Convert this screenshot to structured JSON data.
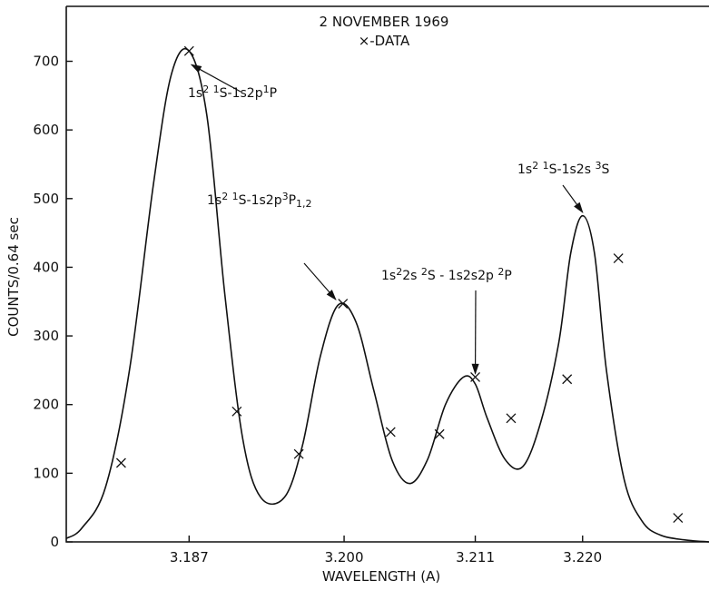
{
  "chart_data": {
    "type": "line",
    "title": "2 NOVEMBER 1969",
    "subtitle": "×-DATA",
    "xlabel": "WAVELENGTH (A)",
    "ylabel": "COUNTS/0.64 sec",
    "xlim": [
      3.1767,
      3.2306
    ],
    "ylim": [
      0,
      780
    ],
    "x_ticks": [
      {
        "value": 3.187,
        "label": "3.187"
      },
      {
        "value": 3.2,
        "label": "3.200"
      },
      {
        "value": 3.211,
        "label": "3.211"
      },
      {
        "value": 3.22,
        "label": "3.220"
      }
    ],
    "y_ticks": [
      0,
      100,
      200,
      300,
      400,
      500,
      600,
      700
    ],
    "fit_curve": {
      "x": [
        3.1767,
        3.178,
        3.18,
        3.182,
        3.184,
        3.1855,
        3.187,
        3.1885,
        3.19,
        3.1915,
        3.193,
        3.195,
        3.1965,
        3.198,
        3.1995,
        3.201,
        3.2025,
        3.204,
        3.2055,
        3.207,
        3.2085,
        3.21,
        3.211,
        3.212,
        3.2135,
        3.215,
        3.2165,
        3.218,
        3.219,
        3.22,
        3.221,
        3.222,
        3.2235,
        3.225,
        3.2265,
        3.2285,
        3.2306
      ],
      "y": [
        5,
        20,
        80,
        250,
        520,
        680,
        715,
        620,
        360,
        150,
        65,
        65,
        140,
        270,
        345,
        320,
        220,
        120,
        85,
        120,
        200,
        240,
        230,
        180,
        120,
        110,
        175,
        290,
        420,
        475,
        420,
        250,
        90,
        30,
        10,
        3,
        0
      ]
    },
    "series": [
      {
        "name": "DATA",
        "x": [
          3.1813,
          3.187,
          3.191,
          3.1962,
          3.1999,
          3.2039,
          3.208,
          3.211,
          3.214,
          3.2187,
          3.223,
          3.228
        ],
        "y": [
          115,
          715,
          190,
          128,
          347,
          160,
          157,
          240,
          180,
          237,
          413,
          35
        ]
      }
    ],
    "annotations": [
      {
        "parts": [
          {
            "t": "1s"
          },
          {
            "t": "2",
            "sup": true
          },
          {
            "t": " "
          },
          {
            "t": "1",
            "sup": true
          },
          {
            "t": "S-1s2p"
          },
          {
            "t": "1",
            "sup": true
          },
          {
            "t": "P"
          }
        ],
        "x": 3.1872,
        "y": 695
      },
      {
        "parts": [
          {
            "t": "1s"
          },
          {
            "t": "2",
            "sup": true
          },
          {
            "t": " "
          },
          {
            "t": "1",
            "sup": true
          },
          {
            "t": "S-1s2p"
          },
          {
            "t": "3",
            "sup": true
          },
          {
            "t": "P"
          },
          {
            "t": "1,2",
            "sub": true
          }
        ],
        "x": 3.1993,
        "y": 353
      },
      {
        "parts": [
          {
            "t": "1s"
          },
          {
            "t": "2",
            "sup": true
          },
          {
            "t": "2s "
          },
          {
            "t": "2",
            "sup": true
          },
          {
            "t": "S - 1s2s2p "
          },
          {
            "t": "2",
            "sup": true
          },
          {
            "t": "P"
          }
        ],
        "x": 3.211,
        "y": 245
      },
      {
        "parts": [
          {
            "t": "1s"
          },
          {
            "t": "2",
            "sup": true
          },
          {
            "t": " "
          },
          {
            "t": "1",
            "sup": true
          },
          {
            "t": "S-1s2s "
          },
          {
            "t": "3",
            "sup": true
          },
          {
            "t": "S"
          }
        ],
        "x": 3.22,
        "y": 480
      }
    ],
    "grid": false,
    "legend": "none"
  }
}
